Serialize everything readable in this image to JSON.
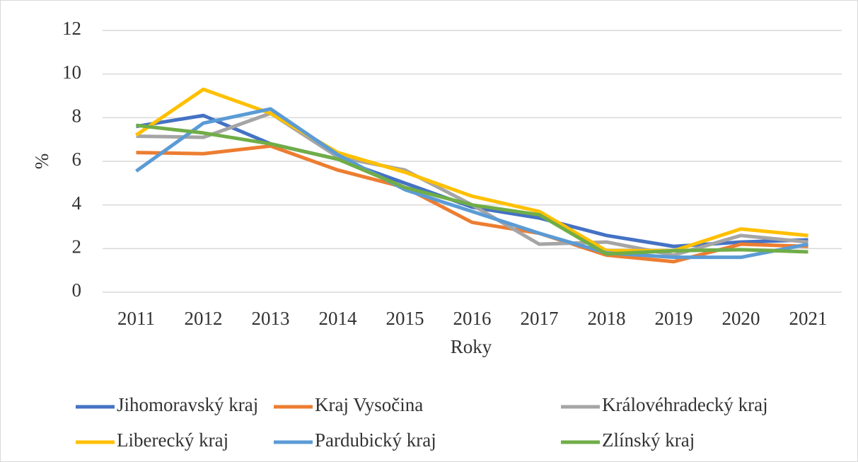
{
  "chart_data": {
    "type": "line",
    "x_label": "Roky",
    "y_label": "%",
    "categories": [
      "2011",
      "2012",
      "2013",
      "2014",
      "2015",
      "2016",
      "2017",
      "2018",
      "2019",
      "2020",
      "2021"
    ],
    "series": [
      {
        "name": "Jihomoravský kraj",
        "color": "#4472c4",
        "values": [
          7.6,
          8.1,
          6.8,
          6.1,
          5.0,
          3.9,
          3.4,
          2.6,
          2.1,
          2.3,
          2.4
        ]
      },
      {
        "name": "Kraj Vysočina",
        "color": "#ed7d31",
        "values": [
          6.4,
          6.35,
          6.7,
          5.6,
          4.8,
          3.2,
          2.7,
          1.7,
          1.4,
          2.2,
          2.1
        ]
      },
      {
        "name": "Královéhradecký kraj",
        "color": "#a5a5a5",
        "values": [
          7.15,
          7.1,
          8.2,
          6.2,
          5.6,
          4.0,
          2.2,
          2.3,
          1.7,
          2.6,
          2.3
        ]
      },
      {
        "name": "Liberecký kraj",
        "color": "#ffc000",
        "values": [
          7.2,
          9.3,
          8.2,
          6.4,
          5.5,
          4.4,
          3.7,
          1.9,
          1.9,
          2.9,
          2.6
        ]
      },
      {
        "name": "Pardubický kraj",
        "color": "#5b9bd5",
        "values": [
          5.55,
          7.75,
          8.4,
          6.3,
          4.7,
          3.7,
          2.7,
          1.8,
          1.6,
          1.6,
          2.2
        ]
      },
      {
        "name": "Zlínský kraj",
        "color": "#70ad47",
        "values": [
          7.65,
          7.3,
          6.8,
          6.1,
          4.8,
          4.0,
          3.55,
          1.75,
          1.9,
          1.95,
          1.85
        ]
      }
    ],
    "ylim": [
      0,
      12
    ],
    "yticks": [
      0,
      2,
      4,
      6,
      8,
      10,
      12
    ],
    "grid": true,
    "legend": "bottom"
  }
}
